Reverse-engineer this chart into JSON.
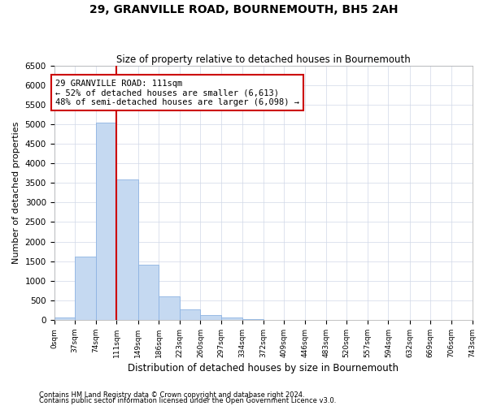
{
  "title": "29, GRANVILLE ROAD, BOURNEMOUTH, BH5 2AH",
  "subtitle": "Size of property relative to detached houses in Bournemouth",
  "xlabel": "Distribution of detached houses by size in Bournemouth",
  "ylabel": "Number of detached properties",
  "footnote1": "Contains HM Land Registry data © Crown copyright and database right 2024.",
  "footnote2": "Contains public sector information licensed under the Open Government Licence v3.0.",
  "annotation_title": "29 GRANVILLE ROAD: 111sqm",
  "annotation_line1": "← 52% of detached houses are smaller (6,613)",
  "annotation_line2": "48% of semi-detached houses are larger (6,098) →",
  "property_size": 111,
  "bins": [
    0,
    37,
    74,
    111,
    149,
    186,
    223,
    260,
    297,
    334,
    372,
    409,
    446,
    483,
    520,
    557,
    594,
    632,
    669,
    706,
    743
  ],
  "bar_labels": [
    "0sqm",
    "37sqm",
    "74sqm",
    "111sqm",
    "149sqm",
    "186sqm",
    "223sqm",
    "260sqm",
    "297sqm",
    "334sqm",
    "372sqm",
    "409sqm",
    "446sqm",
    "483sqm",
    "520sqm",
    "557sqm",
    "594sqm",
    "632sqm",
    "669sqm",
    "706sqm",
    "743sqm"
  ],
  "bar_heights": [
    70,
    1620,
    5050,
    3580,
    1400,
    600,
    260,
    120,
    70,
    30,
    5,
    0,
    0,
    0,
    0,
    0,
    0,
    0,
    0,
    0
  ],
  "bar_color": "#c5d9f1",
  "bar_edge_color": "#8db3e2",
  "vline_color": "#cc0000",
  "annotation_box_color": "#ffffff",
  "annotation_box_edge": "#cc0000",
  "grid_color": "#d0d8e8",
  "background_color": "#ffffff",
  "ylim": [
    0,
    6500
  ],
  "yticks": [
    0,
    500,
    1000,
    1500,
    2000,
    2500,
    3000,
    3500,
    4000,
    4500,
    5000,
    5500,
    6000,
    6500
  ],
  "title_fontsize": 10,
  "subtitle_fontsize": 8.5,
  "ylabel_fontsize": 8,
  "xlabel_fontsize": 8.5
}
